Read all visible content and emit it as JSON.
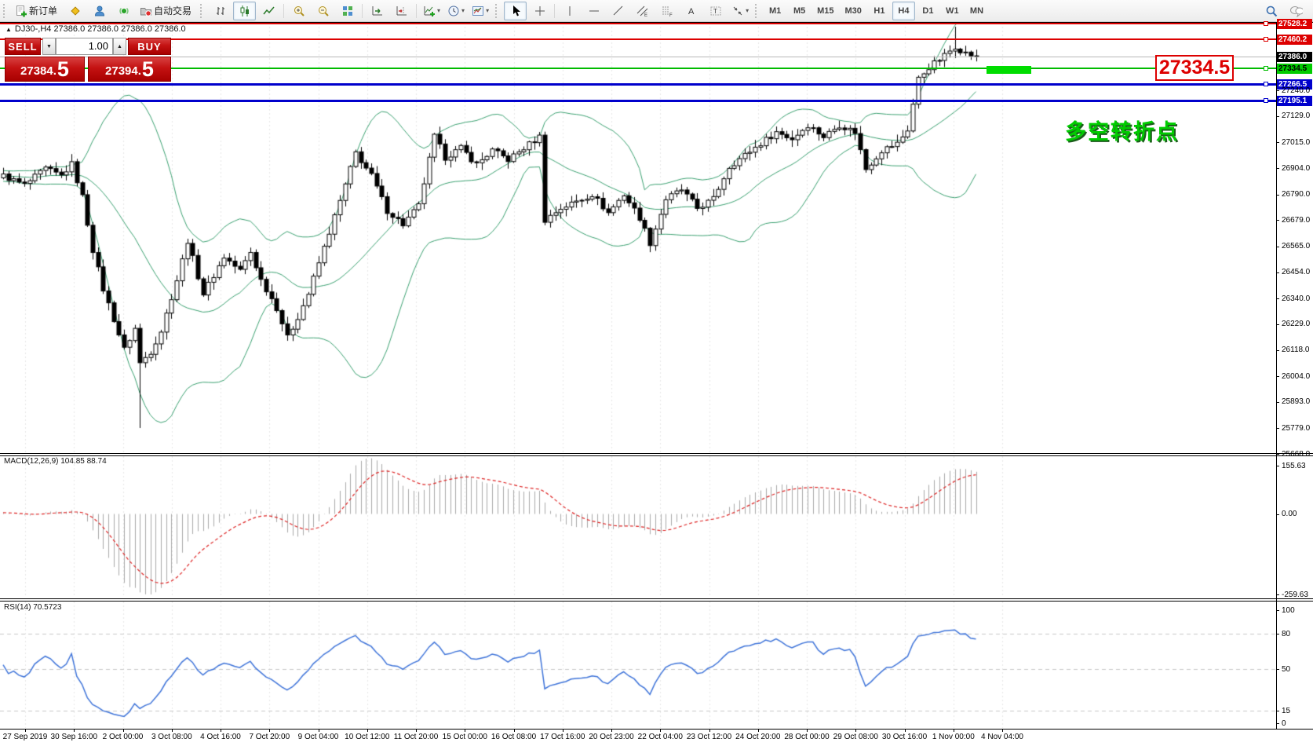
{
  "colors": {
    "accent_red": "#c41212",
    "line_red": "#dd0000",
    "line_green": "#00bb00",
    "line_blue": "#0000cc",
    "current_price_gray": "#b8b8b8",
    "band_green": "#3aa070",
    "rsi_blue": "#3f74d9",
    "macd_signal_red": "#dd2222",
    "macd_histogram_gray": "#a8a8a8",
    "annotation_green": "#00cc00",
    "candle_bull": "#ffffff",
    "candle_bear": "#000000"
  },
  "toolbar": {
    "groups": [
      {
        "items": [
          {
            "name": "new-order-button",
            "icon": "new-order-icon",
            "label": "新订单"
          },
          {
            "name": "metaeditor-button",
            "icon": "metaeditor-icon"
          },
          {
            "name": "community-button",
            "icon": "community-icon"
          },
          {
            "name": "signals-button",
            "icon": "signals-icon"
          },
          {
            "name": "autotrading-button",
            "icon": "autotrading-icon",
            "label": "自动交易"
          }
        ]
      },
      {
        "items": [
          {
            "name": "bar-chart-button",
            "icon": "bar-chart-icon"
          },
          {
            "name": "candlestick-button",
            "icon": "candlestick-icon",
            "pressed": true
          },
          {
            "name": "line-chart-button",
            "icon": "line-chart-icon"
          },
          {
            "sep": true
          },
          {
            "name": "zoom-in-button",
            "icon": "zoom-in-icon"
          },
          {
            "name": "zoom-out-button",
            "icon": "zoom-out-icon"
          },
          {
            "name": "tile-windows-button",
            "icon": "tile-windows-icon"
          },
          {
            "sep": true
          },
          {
            "name": "auto-scroll-button",
            "icon": "auto-scroll-icon"
          },
          {
            "name": "chart-shift-button",
            "icon": "chart-shift-icon"
          },
          {
            "sep": true
          },
          {
            "name": "indicators-button",
            "icon": "indicators-icon",
            "dropdown": true
          },
          {
            "name": "periods-button",
            "icon": "periods-icon",
            "dropdown": true
          },
          {
            "name": "templates-button",
            "icon": "templates-icon",
            "dropdown": true
          }
        ]
      },
      {
        "items": [
          {
            "name": "cursor-button",
            "icon": "cursor-icon",
            "pressed": true
          },
          {
            "name": "crosshair-button",
            "icon": "crosshair-icon"
          },
          {
            "sep": true
          },
          {
            "name": "vertical-line-button",
            "icon": "vertical-line-icon"
          },
          {
            "name": "horizontal-line-button",
            "icon": "horizontal-line-icon"
          },
          {
            "name": "trendline-button",
            "icon": "trendline-icon"
          },
          {
            "name": "equidistant-channel-button",
            "icon": "channel-icon"
          },
          {
            "name": "fibonacci-button",
            "icon": "fibonacci-icon"
          },
          {
            "name": "text-button",
            "icon": "text-icon"
          },
          {
            "name": "text-label-button",
            "icon": "label-icon"
          },
          {
            "name": "shapes-button",
            "icon": "shapes-icon",
            "dropdown": true
          }
        ]
      },
      {
        "items": [
          {
            "name": "timeframe-m1",
            "label": "M1"
          },
          {
            "name": "timeframe-m5",
            "label": "M5"
          },
          {
            "name": "timeframe-m15",
            "label": "M15"
          },
          {
            "name": "timeframe-m30",
            "label": "M30"
          },
          {
            "name": "timeframe-h1",
            "label": "H1"
          },
          {
            "name": "timeframe-h4",
            "label": "H4",
            "pressed": true
          },
          {
            "name": "timeframe-d1",
            "label": "D1"
          },
          {
            "name": "timeframe-w1",
            "label": "W1"
          },
          {
            "name": "timeframe-mn",
            "label": "MN"
          }
        ]
      }
    ],
    "right_items": [
      {
        "name": "search-button",
        "icon": "search-icon"
      },
      {
        "name": "chat-button",
        "icon": "chat-icon"
      }
    ]
  },
  "chart": {
    "collapse_icon": "▲",
    "title": "DJ30-,H4 27386.0 27386.0 27386.0 27386.0",
    "trade_panel": {
      "sell_label": "SELL",
      "buy_label": "BUY",
      "volume": "1.00",
      "spin_down": "▼",
      "spin_up": "▲",
      "bid_main": "27384.",
      "bid_big": "5",
      "ask_main": "27394.",
      "ask_big": "5"
    },
    "callout": "27334.5",
    "annotation": "多空转折点",
    "hlines": [
      {
        "price": 27528.2,
        "label": "27528.2",
        "color": "#dd0000",
        "thick": 2,
        "label_bg": "#dd0000",
        "label_fg": "#ffffff",
        "handle": true
      },
      {
        "price": 27460.2,
        "label": "27460.2",
        "color": "#dd0000",
        "thick": 2,
        "label_bg": "#dd0000",
        "label_fg": "#ffffff",
        "handle": true
      },
      {
        "price": 27386.0,
        "label": "27386.0",
        "color": "#b8b8b8",
        "thick": 1,
        "label_bg": "#000000",
        "label_fg": "#ffffff",
        "handle": false
      },
      {
        "price": 27334.5,
        "label": "27334.5",
        "color": "#00bb00",
        "thick": 2,
        "label_bg": "#00cc00",
        "label_fg": "#000000",
        "handle": true
      },
      {
        "price": 27266.5,
        "label": "27266.5",
        "color": "#0000cc",
        "thick": 3,
        "label_bg": "#0000cc",
        "label_fg": "#ffffff",
        "handle": true
      },
      {
        "price": 27195.1,
        "label": "27195.1",
        "color": "#0000cc",
        "thick": 3,
        "label_bg": "#0000cc",
        "label_fg": "#ffffff",
        "handle": true
      }
    ],
    "y_ticks": [
      "27240.0",
      "27129.0",
      "27015.0",
      "26904.0",
      "26790.0",
      "26679.0",
      "26565.0",
      "26454.0",
      "26340.0",
      "26229.0",
      "26118.0",
      "26004.0",
      "25893.0",
      "25779.0",
      "25668.0"
    ]
  },
  "macd": {
    "label": "MACD(12,26,9) 104.85 88.74",
    "ticks": [
      "155.63",
      "0.00",
      "-259.63"
    ]
  },
  "rsi": {
    "label": "RSI(14) 70.5723",
    "ticks": [
      "100",
      "80",
      "50",
      "15",
      "0"
    ]
  },
  "chart_data": {
    "type": "candlestick",
    "symbol": "DJ30-",
    "timeframe": "H4",
    "ohlc_current": {
      "open": 27386.0,
      "high": 27386.0,
      "low": 27386.0,
      "close": 27386.0
    },
    "bid": 27384.5,
    "ask": 27394.5,
    "current_price": 27386.0,
    "price_axis_ticks": [
      27240,
      27129,
      27015,
      26904,
      26790,
      26679,
      26565,
      26454,
      26340,
      26229,
      26118,
      26004,
      25893,
      25779,
      25668
    ],
    "hline_prices": [
      27528.2,
      27460.2,
      27334.5,
      27266.5,
      27195.1
    ],
    "highlight_zone_price": 27334.5,
    "x_labels": [
      "27 Sep 2019",
      "30 Sep 16:00",
      "2 Oct 00:00",
      "3 Oct 08:00",
      "4 Oct 16:00",
      "7 Oct 20:00",
      "9 Oct 04:00",
      "10 Oct 12:00",
      "11 Oct 20:00",
      "15 Oct 00:00",
      "16 Oct 08:00",
      "17 Oct 16:00",
      "20 Oct 23:00",
      "22 Oct 04:00",
      "23 Oct 12:00",
      "24 Oct 20:00",
      "28 Oct 00:00",
      "29 Oct 08:00",
      "30 Oct 16:00",
      "1 Nov 00:00",
      "4 Nov 04:00"
    ],
    "candle_count": 186,
    "last_close": 27386,
    "close_anchors": [
      [
        0,
        26870
      ],
      [
        4,
        26830
      ],
      [
        8,
        26900
      ],
      [
        11,
        26870
      ],
      [
        13,
        26920
      ],
      [
        15,
        26780
      ],
      [
        17,
        26550
      ],
      [
        19,
        26380
      ],
      [
        21,
        26250
      ],
      [
        23,
        26120
      ],
      [
        25,
        26210
      ],
      [
        26,
        26060
      ],
      [
        28,
        26110
      ],
      [
        30,
        26200
      ],
      [
        33,
        26420
      ],
      [
        35,
        26590
      ],
      [
        38,
        26360
      ],
      [
        42,
        26520
      ],
      [
        45,
        26460
      ],
      [
        47,
        26540
      ],
      [
        49,
        26420
      ],
      [
        52,
        26300
      ],
      [
        54,
        26170
      ],
      [
        56,
        26260
      ],
      [
        58,
        26360
      ],
      [
        61,
        26560
      ],
      [
        64,
        26760
      ],
      [
        67,
        26970
      ],
      [
        70,
        26870
      ],
      [
        73,
        26720
      ],
      [
        76,
        26660
      ],
      [
        79,
        26740
      ],
      [
        82,
        27040
      ],
      [
        84,
        26950
      ],
      [
        87,
        26990
      ],
      [
        90,
        26920
      ],
      [
        93,
        26980
      ],
      [
        96,
        26940
      ],
      [
        99,
        26990
      ],
      [
        102,
        27040
      ],
      [
        103,
        26680
      ],
      [
        106,
        26730
      ],
      [
        109,
        26760
      ],
      [
        112,
        26790
      ],
      [
        115,
        26710
      ],
      [
        118,
        26790
      ],
      [
        121,
        26690
      ],
      [
        123,
        26580
      ],
      [
        126,
        26770
      ],
      [
        129,
        26810
      ],
      [
        132,
        26730
      ],
      [
        135,
        26770
      ],
      [
        138,
        26910
      ],
      [
        141,
        26960
      ],
      [
        144,
        27010
      ],
      [
        147,
        27060
      ],
      [
        150,
        27030
      ],
      [
        153,
        27090
      ],
      [
        156,
        27040
      ],
      [
        159,
        27090
      ],
      [
        162,
        27060
      ],
      [
        164,
        26900
      ],
      [
        167,
        26980
      ],
      [
        170,
        27010
      ],
      [
        172,
        27070
      ],
      [
        174,
        27290
      ],
      [
        176,
        27340
      ],
      [
        179,
        27390
      ],
      [
        181,
        27430
      ],
      [
        183,
        27400
      ],
      [
        185,
        27386
      ]
    ],
    "wick_overrides": [
      {
        "i": 26,
        "low": 25780
      },
      {
        "i": 181,
        "high": 27515
      }
    ],
    "overlays": [
      "BollingerBands(20,2)"
    ],
    "indicators": [
      {
        "name": "MACD",
        "params": [
          12,
          26,
          9
        ],
        "current": [
          104.85,
          88.74
        ],
        "axis": [
          -259.63,
          155.63
        ]
      },
      {
        "name": "RSI",
        "params": [
          14
        ],
        "current": 70.5723,
        "axis": [
          0,
          100
        ],
        "levels": [
          80,
          50,
          15
        ]
      }
    ]
  }
}
